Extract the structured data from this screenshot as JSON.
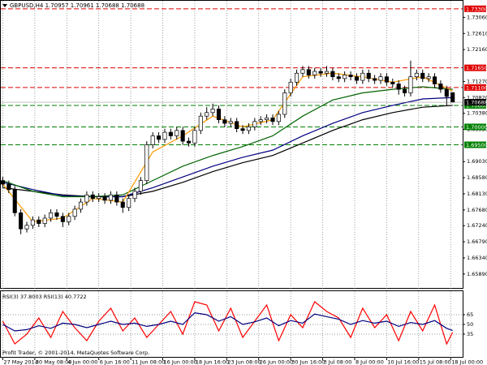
{
  "chart_data": [
    {
      "type": "candlestick",
      "title": "GBPUSD,H4  1.70957 1.70961 1.70688 1.70688",
      "xlim": [
        -1,
        230
      ],
      "xticks": [
        {
          "value": 0,
          "label": "27 May 2014"
        },
        {
          "value": 16,
          "label": "30 May 08:00"
        },
        {
          "value": 32,
          "label": "4 Jun 00:00"
        },
        {
          "value": 48,
          "label": "6 Jun 16:00"
        },
        {
          "value": 64,
          "label": "11 Jun 08:00"
        },
        {
          "value": 80,
          "label": "16 Jun 00:00"
        },
        {
          "value": 96,
          "label": "18 Jun 16:00"
        },
        {
          "value": 112,
          "label": "23 Jun 08:00"
        },
        {
          "value": 128,
          "label": "26 Jun 00:00"
        },
        {
          "value": 144,
          "label": "30 Jun 16:00"
        },
        {
          "value": 160,
          "label": "3 Jul 08:00"
        },
        {
          "value": 176,
          "label": "8 Jul 00:00"
        },
        {
          "value": 192,
          "label": "10 Jul 16:00"
        },
        {
          "value": 208,
          "label": "15 Jul 08:00"
        },
        {
          "value": 224,
          "label": "18 Jul 00:00"
        }
      ],
      "ylim": [
        1.655,
        1.735
      ],
      "yticks": [
        {
          "value": 1.6589,
          "label": "1.65890"
        },
        {
          "value": 1.6634,
          "label": "1.66340"
        },
        {
          "value": 1.6679,
          "label": "1.66790"
        },
        {
          "value": 1.6724,
          "label": "1.67240"
        },
        {
          "value": 1.6768,
          "label": "1.67680"
        },
        {
          "value": 1.6813,
          "label": "1.68130"
        },
        {
          "value": 1.6858,
          "label": "1.68580"
        },
        {
          "value": 1.6903,
          "label": "1.69030"
        },
        {
          "value": 1.6993,
          "label": "1.69930"
        },
        {
          "value": 1.7038,
          "label": "1.70380"
        },
        {
          "value": 1.7082,
          "label": "1.70820"
        },
        {
          "value": 1.7127,
          "label": "1.71270"
        },
        {
          "value": 1.7216,
          "label": "1.72160"
        },
        {
          "value": 1.7261,
          "label": "1.72610"
        },
        {
          "value": 1.7306,
          "label": "1.73060"
        }
      ],
      "x": [
        0,
        3,
        6,
        9,
        12,
        15,
        18,
        21,
        24,
        27,
        30,
        33,
        36,
        39,
        42,
        45,
        48,
        51,
        54,
        57,
        60,
        63,
        66,
        69,
        72,
        75,
        78,
        81,
        84,
        87,
        90,
        93,
        96,
        99,
        102,
        105,
        108,
        111,
        114,
        117,
        120,
        123,
        126,
        129,
        132,
        135,
        138,
        141,
        144,
        147,
        150,
        153,
        156,
        159,
        162,
        165,
        168,
        171,
        174,
        177,
        180,
        183,
        186,
        189,
        192,
        195,
        198,
        201,
        204,
        207,
        210,
        213,
        216,
        219,
        222,
        225
      ],
      "open": [
        1.685,
        1.684,
        1.6825,
        1.676,
        1.6715,
        1.6725,
        1.674,
        1.673,
        1.6745,
        1.676,
        1.675,
        1.6735,
        1.675,
        1.677,
        1.679,
        1.681,
        1.68,
        1.6805,
        1.6795,
        1.681,
        1.679,
        1.6775,
        1.68,
        1.682,
        1.685,
        1.695,
        1.6975,
        1.6965,
        1.6985,
        1.6975,
        1.699,
        1.696,
        1.6955,
        1.699,
        1.703,
        1.704,
        1.705,
        1.702,
        1.701,
        1.7015,
        1.6995,
        1.699,
        1.7,
        1.7015,
        1.702,
        1.7025,
        1.7015,
        1.7035,
        1.7095,
        1.7125,
        1.715,
        1.716,
        1.7145,
        1.7155,
        1.715,
        1.7155,
        1.714,
        1.7135,
        1.7145,
        1.714,
        1.713,
        1.715,
        1.7135,
        1.713,
        1.714,
        1.7125,
        1.712,
        1.7105,
        1.7095,
        1.714,
        1.715,
        1.7135,
        1.714,
        1.712,
        1.7105,
        1.70957
      ],
      "high": [
        1.686,
        1.685,
        1.6835,
        1.677,
        1.6735,
        1.675,
        1.675,
        1.6755,
        1.677,
        1.677,
        1.676,
        1.676,
        1.678,
        1.68,
        1.682,
        1.682,
        1.6815,
        1.6815,
        1.682,
        1.682,
        1.68,
        1.681,
        1.683,
        1.686,
        1.696,
        1.6985,
        1.6985,
        1.6995,
        1.6995,
        1.7,
        1.7,
        1.697,
        1.7,
        1.704,
        1.7055,
        1.7065,
        1.706,
        1.703,
        1.7025,
        1.7025,
        1.7005,
        1.701,
        1.7025,
        1.703,
        1.7035,
        1.7035,
        1.7045,
        1.7105,
        1.7135,
        1.716,
        1.717,
        1.717,
        1.7165,
        1.7165,
        1.717,
        1.7165,
        1.715,
        1.7155,
        1.7155,
        1.715,
        1.716,
        1.716,
        1.7145,
        1.715,
        1.715,
        1.7135,
        1.713,
        1.7115,
        1.7185,
        1.716,
        1.716,
        1.715,
        1.715,
        1.713,
        1.7115,
        1.70961
      ],
      "low": [
        1.683,
        1.6815,
        1.675,
        1.67,
        1.6705,
        1.6715,
        1.672,
        1.672,
        1.6735,
        1.674,
        1.672,
        1.6725,
        1.674,
        1.676,
        1.678,
        1.679,
        1.679,
        1.6785,
        1.6785,
        1.678,
        1.676,
        1.6765,
        1.679,
        1.681,
        1.684,
        1.694,
        1.6955,
        1.6955,
        1.6965,
        1.6965,
        1.695,
        1.6945,
        1.6945,
        1.698,
        1.702,
        1.703,
        1.701,
        1.7,
        1.7,
        1.6985,
        1.698,
        1.698,
        1.699,
        1.7005,
        1.701,
        1.7005,
        1.7005,
        1.7025,
        1.7085,
        1.7115,
        1.714,
        1.7135,
        1.7135,
        1.714,
        1.714,
        1.713,
        1.7125,
        1.7125,
        1.713,
        1.712,
        1.712,
        1.7125,
        1.712,
        1.712,
        1.7115,
        1.711,
        1.709,
        1.7085,
        1.7085,
        1.713,
        1.7125,
        1.7125,
        1.711,
        1.7095,
        1.706,
        1.70688
      ],
      "close": [
        1.684,
        1.6825,
        1.676,
        1.6715,
        1.6725,
        1.674,
        1.673,
        1.6745,
        1.676,
        1.675,
        1.6735,
        1.675,
        1.677,
        1.679,
        1.681,
        1.68,
        1.6805,
        1.6795,
        1.681,
        1.679,
        1.6775,
        1.68,
        1.682,
        1.685,
        1.695,
        1.6975,
        1.6965,
        1.6985,
        1.6975,
        1.699,
        1.696,
        1.6955,
        1.699,
        1.703,
        1.704,
        1.705,
        1.702,
        1.701,
        1.7015,
        1.6995,
        1.699,
        1.7,
        1.7015,
        1.702,
        1.7025,
        1.7015,
        1.7035,
        1.7095,
        1.7125,
        1.715,
        1.716,
        1.7145,
        1.7155,
        1.715,
        1.7155,
        1.714,
        1.7135,
        1.7145,
        1.714,
        1.713,
        1.715,
        1.7135,
        1.713,
        1.714,
        1.7125,
        1.712,
        1.7105,
        1.7095,
        1.714,
        1.715,
        1.7135,
        1.714,
        1.712,
        1.7105,
        1.7085,
        1.70688
      ],
      "series": [
        {
          "color": "#000000",
          "x": [
            0,
            15,
            30,
            45,
            60,
            75,
            90,
            105,
            120,
            135,
            150,
            165,
            180,
            195,
            210,
            225
          ],
          "values": [
            1.683,
            1.682,
            1.681,
            1.6805,
            1.6805,
            1.682,
            1.6845,
            1.6875,
            1.69,
            1.692,
            1.6955,
            1.699,
            1.702,
            1.704,
            1.7055,
            1.706
          ]
        },
        {
          "color": "#000080",
          "x": [
            0,
            15,
            30,
            45,
            60,
            75,
            90,
            105,
            120,
            135,
            150,
            165,
            180,
            195,
            210,
            225
          ],
          "values": [
            1.6845,
            1.6825,
            1.6808,
            1.6805,
            1.6805,
            1.683,
            1.686,
            1.689,
            1.6915,
            1.6935,
            1.6975,
            1.701,
            1.704,
            1.706,
            1.7078,
            1.7082
          ]
        },
        {
          "color": "#006400",
          "x": [
            0,
            15,
            30,
            45,
            60,
            75,
            90,
            105,
            120,
            135,
            150,
            165,
            180,
            195,
            210,
            225
          ],
          "values": [
            1.685,
            1.682,
            1.6805,
            1.6805,
            1.681,
            1.685,
            1.689,
            1.692,
            1.6945,
            1.6975,
            1.703,
            1.7075,
            1.7095,
            1.7105,
            1.7112,
            1.7105
          ]
        },
        {
          "color": "#ff9900",
          "x": [
            0,
            15,
            30,
            45,
            60,
            75,
            90,
            105,
            120,
            135,
            150,
            165,
            180,
            195,
            210,
            225
          ],
          "values": [
            1.684,
            1.6735,
            1.6745,
            1.68,
            1.679,
            1.693,
            1.6975,
            1.703,
            1.7,
            1.702,
            1.714,
            1.715,
            1.714,
            1.7125,
            1.714,
            1.71
          ]
        }
      ],
      "levels": [
        {
          "value": 1.733,
          "label": "1.73300",
          "color": "#e00000"
        },
        {
          "value": 1.7165,
          "label": "1.71650",
          "color": "#e00000"
        },
        {
          "value": 1.711,
          "label": "1.71100",
          "color": "#e00000"
        },
        {
          "value": 1.706,
          "label": "1.70600",
          "color": "#008000"
        },
        {
          "value": 1.7,
          "label": "1.70000",
          "color": "#008000"
        },
        {
          "value": 1.695,
          "label": "1.69500",
          "color": "#008000"
        }
      ],
      "price_marker": 1.70688,
      "copyright": "Profit Trader, © 2001-2014, MetaQuotes Software Corp."
    },
    {
      "type": "line",
      "title": "RSI(3) 37.8003 RSI(13) 40.7722",
      "xlim": [
        -1,
        230
      ],
      "ylim": [
        0,
        100
      ],
      "yticks": [
        35,
        50,
        65
      ],
      "series": [
        {
          "color": "#ff0000",
          "x": [
            0,
            6,
            12,
            18,
            24,
            30,
            36,
            42,
            48,
            54,
            60,
            66,
            72,
            78,
            84,
            90,
            96,
            102,
            108,
            114,
            120,
            126,
            132,
            138,
            144,
            150,
            156,
            162,
            168,
            174,
            180,
            186,
            192,
            198,
            204,
            210,
            216,
            222,
            225
          ],
          "values": [
            55,
            20,
            35,
            60,
            30,
            70,
            45,
            25,
            55,
            75,
            40,
            60,
            30,
            50,
            70,
            35,
            85,
            80,
            40,
            75,
            30,
            55,
            80,
            25,
            65,
            45,
            85,
            70,
            60,
            30,
            75,
            45,
            65,
            25,
            70,
            40,
            80,
            20,
            37.8003
          ]
        },
        {
          "color": "#000080",
          "x": [
            0,
            6,
            12,
            18,
            24,
            30,
            36,
            42,
            48,
            54,
            60,
            66,
            72,
            78,
            84,
            90,
            96,
            102,
            108,
            114,
            120,
            126,
            132,
            138,
            144,
            150,
            156,
            162,
            168,
            174,
            180,
            186,
            192,
            198,
            204,
            210,
            216,
            222,
            225
          ],
          "values": [
            50,
            40,
            42,
            48,
            44,
            52,
            50,
            45,
            50,
            55,
            50,
            52,
            47,
            50,
            55,
            50,
            68,
            65,
            55,
            62,
            50,
            54,
            60,
            48,
            56,
            52,
            66,
            62,
            58,
            50,
            56,
            52,
            55,
            47,
            53,
            50,
            56,
            44,
            40.7722
          ]
        }
      ]
    }
  ]
}
